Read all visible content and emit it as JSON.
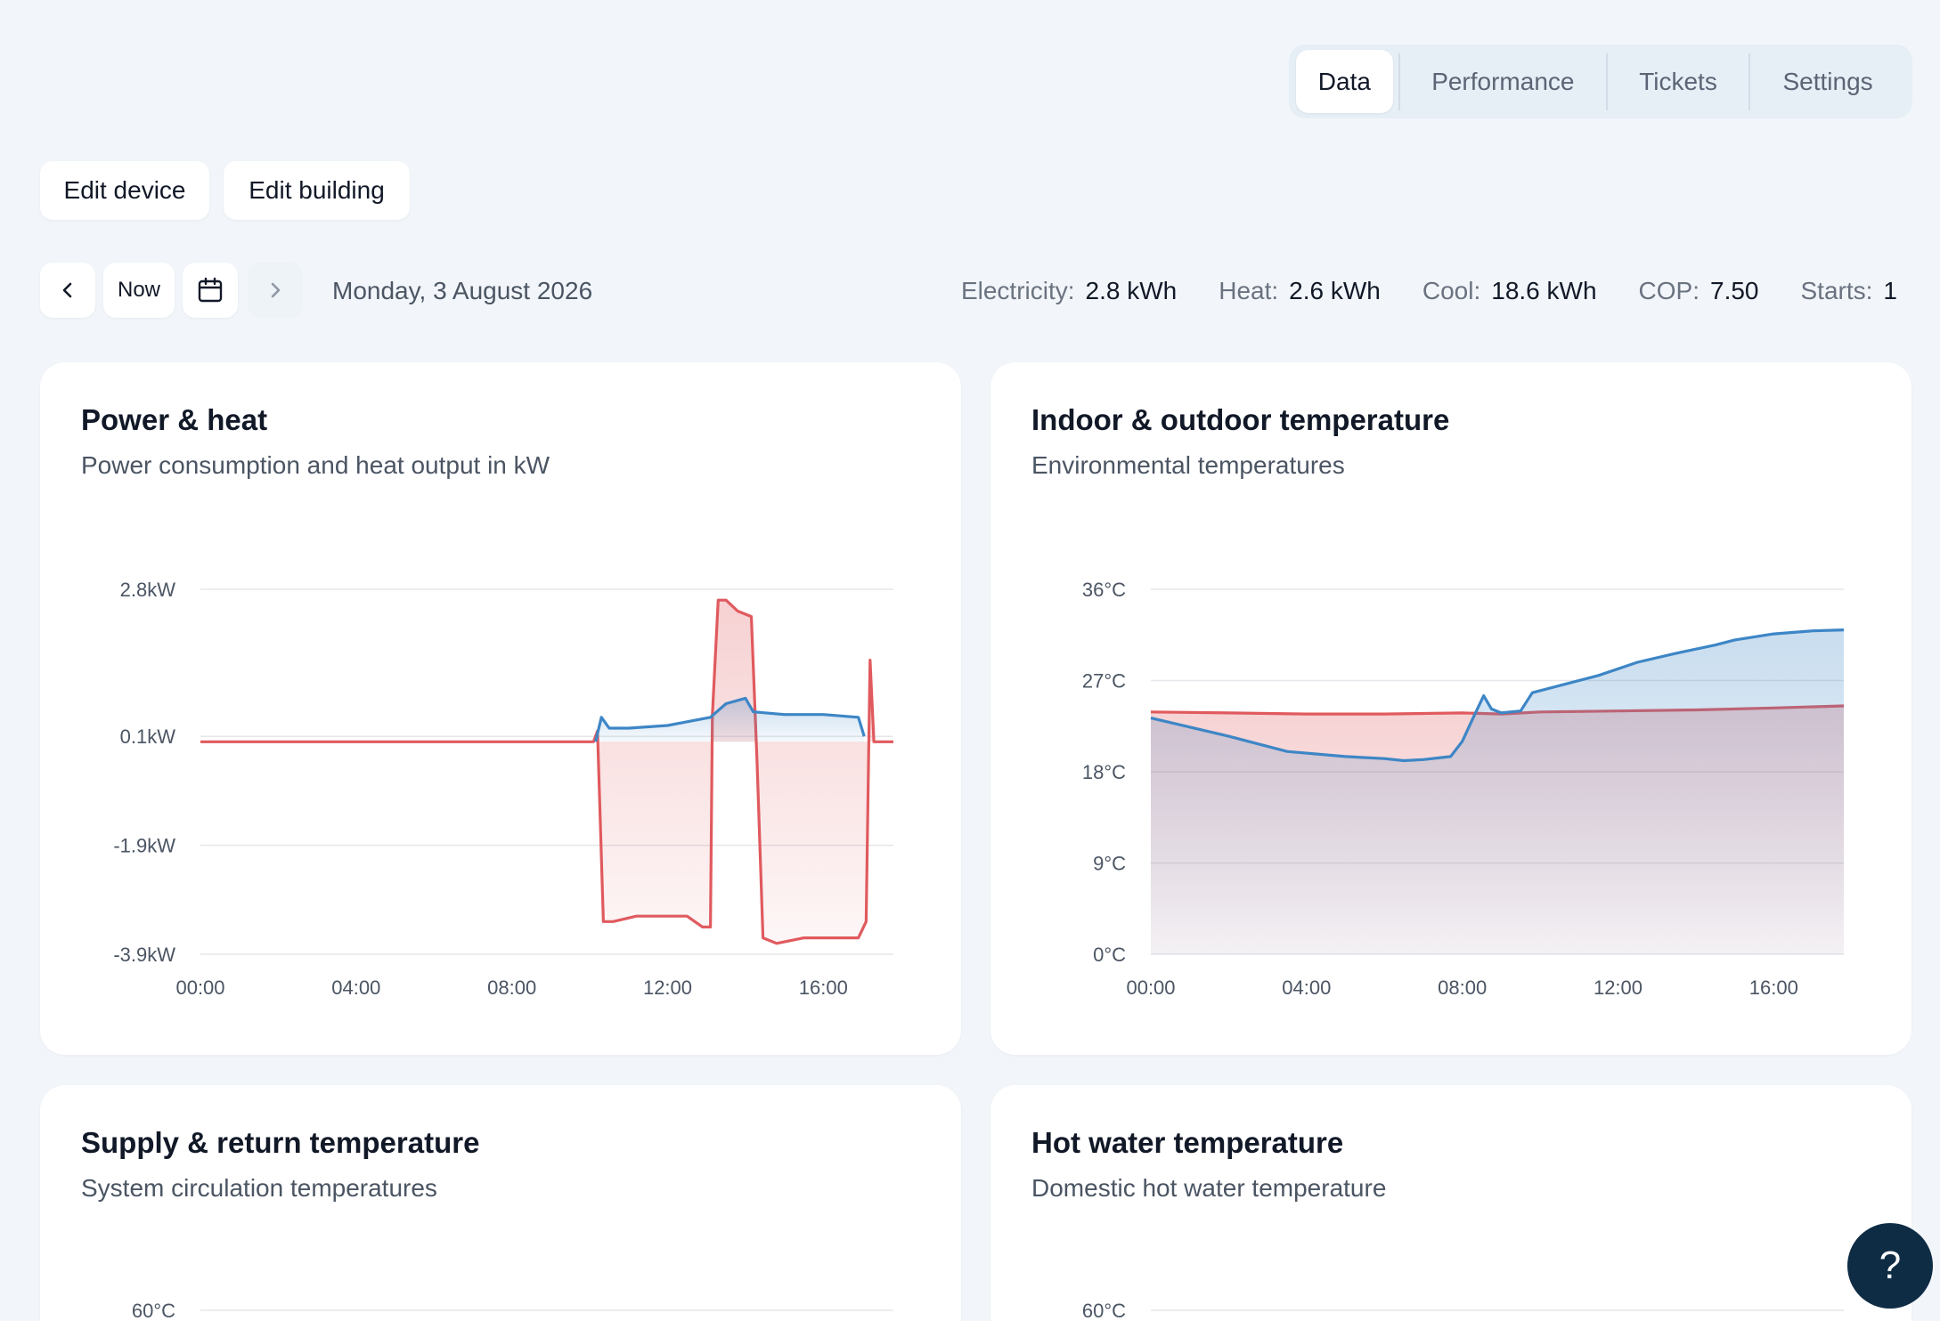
{
  "tabs": [
    {
      "label": "Data",
      "active": true
    },
    {
      "label": "Performance",
      "active": false
    },
    {
      "label": "Tickets",
      "active": false
    },
    {
      "label": "Settings",
      "active": false
    }
  ],
  "actions": {
    "edit_device": "Edit device",
    "edit_building": "Edit building"
  },
  "date_nav": {
    "prev_icon": "chevron-left-icon",
    "now_label": "Now",
    "calendar_icon": "calendar-icon",
    "next_icon": "chevron-right-icon",
    "date": "Monday, 3 August 2026"
  },
  "stats": [
    {
      "label": "Electricity:",
      "value": "2.8 kWh"
    },
    {
      "label": "Heat:",
      "value": "2.6 kWh"
    },
    {
      "label": "Cool:",
      "value": "18.6 kWh"
    },
    {
      "label": "COP:",
      "value": "7.50"
    },
    {
      "label": "Starts:",
      "value": "1"
    }
  ],
  "colors": {
    "power": "#e05a5e",
    "heat": "#3d86c6",
    "background": "#f2f6fa",
    "help": "#0f2c45"
  },
  "cards": [
    {
      "title": "Power & heat",
      "subtitle": "Power consumption and heat output in kW"
    },
    {
      "title": "Indoor & outdoor temperature",
      "subtitle": "Environmental temperatures"
    },
    {
      "title": "Supply & return temperature",
      "subtitle": "System circulation temperatures",
      "top_tick": "60°C"
    },
    {
      "title": "Hot water temperature",
      "subtitle": "Domestic hot water temperature",
      "top_tick": "60°C"
    }
  ],
  "chart_data": [
    {
      "type": "area",
      "x_ticks": [
        "00:00",
        "04:00",
        "08:00",
        "12:00",
        "16:00"
      ],
      "y_ticks": [
        "2.8kW",
        "0.1kW",
        "-1.9kW",
        "-3.9kW"
      ],
      "y_tick_values": [
        2.8,
        0.1,
        -1.9,
        -3.9
      ],
      "xlim": [
        0,
        17.8
      ],
      "ylim": [
        -3.9,
        2.8
      ],
      "series": [
        {
          "color": "#e05a5e",
          "points": [
            [
              0,
              0
            ],
            [
              10.1,
              0
            ],
            [
              10.2,
              0.2
            ],
            [
              10.35,
              -3.3
            ],
            [
              10.6,
              -3.3
            ],
            [
              11.2,
              -3.2
            ],
            [
              12.5,
              -3.2
            ],
            [
              12.9,
              -3.4
            ],
            [
              13.1,
              -3.4
            ],
            [
              13.15,
              0.5
            ],
            [
              13.3,
              2.6
            ],
            [
              13.5,
              2.6
            ],
            [
              13.8,
              2.4
            ],
            [
              14.15,
              2.3
            ],
            [
              14.3,
              -0.4
            ],
            [
              14.45,
              -3.6
            ],
            [
              14.8,
              -3.7
            ],
            [
              15.5,
              -3.6
            ],
            [
              16.5,
              -3.6
            ],
            [
              16.9,
              -3.6
            ],
            [
              17.1,
              -3.3
            ],
            [
              17.2,
              1.5
            ],
            [
              17.3,
              0
            ],
            [
              17.8,
              0
            ]
          ]
        },
        {
          "color": "#3d86c6",
          "points": [
            [
              10.15,
              0
            ],
            [
              10.3,
              0.45
            ],
            [
              10.5,
              0.25
            ],
            [
              11,
              0.25
            ],
            [
              12,
              0.3
            ],
            [
              13.1,
              0.45
            ],
            [
              13.5,
              0.7
            ],
            [
              14.0,
              0.8
            ],
            [
              14.2,
              0.55
            ],
            [
              15.0,
              0.5
            ],
            [
              16.0,
              0.5
            ],
            [
              16.9,
              0.45
            ],
            [
              17.05,
              0.1
            ]
          ]
        }
      ]
    },
    {
      "type": "area",
      "x_ticks": [
        "00:00",
        "04:00",
        "08:00",
        "12:00",
        "16:00"
      ],
      "y_ticks": [
        "36°C",
        "27°C",
        "18°C",
        "9°C",
        "0°C"
      ],
      "y_tick_values": [
        36,
        27,
        18,
        9,
        0
      ],
      "xlim": [
        0,
        17.8
      ],
      "ylim": [
        0,
        36
      ],
      "series": [
        {
          "color": "#e05a5e",
          "points": [
            [
              0,
              23.9
            ],
            [
              2,
              23.8
            ],
            [
              4,
              23.7
            ],
            [
              6,
              23.7
            ],
            [
              8,
              23.8
            ],
            [
              9,
              23.7
            ],
            [
              10,
              23.9
            ],
            [
              12,
              24
            ],
            [
              14,
              24.1
            ],
            [
              16,
              24.3
            ],
            [
              17.8,
              24.5
            ]
          ]
        },
        {
          "color": "#3d86c6",
          "points": [
            [
              0,
              23.3
            ],
            [
              2,
              21.5
            ],
            [
              3.5,
              20
            ],
            [
              5,
              19.5
            ],
            [
              6,
              19.3
            ],
            [
              6.5,
              19.1
            ],
            [
              7,
              19.2
            ],
            [
              7.7,
              19.5
            ],
            [
              8,
              21
            ],
            [
              8.3,
              23.5
            ],
            [
              8.55,
              25.5
            ],
            [
              8.75,
              24.2
            ],
            [
              9,
              23.8
            ],
            [
              9.5,
              24
            ],
            [
              9.8,
              25.8
            ],
            [
              10.5,
              26.5
            ],
            [
              11.5,
              27.5
            ],
            [
              12.5,
              28.8
            ],
            [
              13.5,
              29.7
            ],
            [
              14.5,
              30.5
            ],
            [
              15,
              31
            ],
            [
              16,
              31.6
            ],
            [
              17,
              31.9
            ],
            [
              17.8,
              32
            ]
          ]
        }
      ]
    }
  ]
}
